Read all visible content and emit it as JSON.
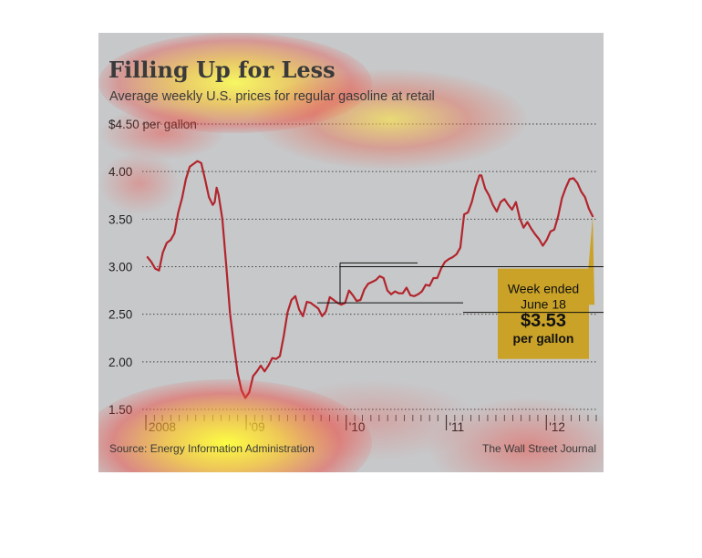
{
  "chart_data": {
    "type": "line",
    "title": "Filling Up for Less",
    "subtitle": "Average weekly U.S. prices for regular gasoline at retail",
    "y_top_label": "$4.50 per gallon",
    "yticks": [
      {
        "value": 4.5,
        "label": ""
      },
      {
        "value": 4.0,
        "label": "4.00"
      },
      {
        "value": 3.5,
        "label": "3.50"
      },
      {
        "value": 3.0,
        "label": "3.00"
      },
      {
        "value": 2.5,
        "label": "2.50"
      },
      {
        "value": 2.0,
        "label": "2.00"
      },
      {
        "value": 1.5,
        "label": "1.50"
      }
    ],
    "ylim": [
      1.5,
      4.5
    ],
    "xlim": [
      "2008-01-01",
      "2012-07-01"
    ],
    "year_labels": [
      {
        "date": "2008-01-01",
        "label": "2008"
      },
      {
        "date": "2009-01-01",
        "label": "'09"
      },
      {
        "date": "2010-01-01",
        "label": "'10"
      },
      {
        "date": "2011-01-01",
        "label": "'11"
      },
      {
        "date": "2012-01-01",
        "label": "'12"
      }
    ],
    "series": [
      {
        "color": "#b2252c",
        "points": [
          [
            "2008-01-07",
            3.1
          ],
          [
            "2008-01-21",
            3.05
          ],
          [
            "2008-02-04",
            2.98
          ],
          [
            "2008-02-18",
            2.96
          ],
          [
            "2008-03-03",
            3.15
          ],
          [
            "2008-03-17",
            3.25
          ],
          [
            "2008-03-31",
            3.28
          ],
          [
            "2008-04-14",
            3.35
          ],
          [
            "2008-04-28",
            3.57
          ],
          [
            "2008-05-12",
            3.72
          ],
          [
            "2008-05-26",
            3.92
          ],
          [
            "2008-06-09",
            4.05
          ],
          [
            "2008-06-23",
            4.08
          ],
          [
            "2008-07-07",
            4.11
          ],
          [
            "2008-07-21",
            4.09
          ],
          [
            "2008-08-04",
            3.92
          ],
          [
            "2008-08-18",
            3.73
          ],
          [
            "2008-09-01",
            3.65
          ],
          [
            "2008-09-08",
            3.68
          ],
          [
            "2008-09-15",
            3.83
          ],
          [
            "2008-09-22",
            3.76
          ],
          [
            "2008-10-06",
            3.5
          ],
          [
            "2008-10-20",
            3.02
          ],
          [
            "2008-11-03",
            2.51
          ],
          [
            "2008-11-17",
            2.18
          ],
          [
            "2008-12-01",
            1.88
          ],
          [
            "2008-12-15",
            1.7
          ],
          [
            "2008-12-29",
            1.62
          ],
          [
            "2009-01-12",
            1.68
          ],
          [
            "2009-01-26",
            1.85
          ],
          [
            "2009-02-09",
            1.9
          ],
          [
            "2009-02-23",
            1.96
          ],
          [
            "2009-03-09",
            1.9
          ],
          [
            "2009-03-23",
            1.96
          ],
          [
            "2009-04-06",
            2.04
          ],
          [
            "2009-04-20",
            2.03
          ],
          [
            "2009-05-04",
            2.06
          ],
          [
            "2009-05-18",
            2.27
          ],
          [
            "2009-06-01",
            2.52
          ],
          [
            "2009-06-15",
            2.65
          ],
          [
            "2009-06-29",
            2.69
          ],
          [
            "2009-07-13",
            2.55
          ],
          [
            "2009-07-27",
            2.48
          ],
          [
            "2009-08-10",
            2.63
          ],
          [
            "2009-08-24",
            2.62
          ],
          [
            "2009-09-07",
            2.59
          ],
          [
            "2009-09-21",
            2.56
          ],
          [
            "2009-10-05",
            2.48
          ],
          [
            "2009-10-19",
            2.53
          ],
          [
            "2009-11-02",
            2.68
          ],
          [
            "2009-11-16",
            2.65
          ],
          [
            "2009-11-30",
            2.62
          ],
          [
            "2009-12-14",
            2.6
          ],
          [
            "2009-12-28",
            2.62
          ],
          [
            "2010-01-11",
            2.75
          ],
          [
            "2010-01-25",
            2.7
          ],
          [
            "2010-02-08",
            2.64
          ],
          [
            "2010-02-22",
            2.65
          ],
          [
            "2010-03-08",
            2.76
          ],
          [
            "2010-03-22",
            2.82
          ],
          [
            "2010-04-05",
            2.84
          ],
          [
            "2010-04-19",
            2.86
          ],
          [
            "2010-05-03",
            2.9
          ],
          [
            "2010-05-17",
            2.88
          ],
          [
            "2010-05-31",
            2.75
          ],
          [
            "2010-06-14",
            2.71
          ],
          [
            "2010-06-28",
            2.74
          ],
          [
            "2010-07-12",
            2.72
          ],
          [
            "2010-07-26",
            2.72
          ],
          [
            "2010-08-09",
            2.78
          ],
          [
            "2010-08-23",
            2.7
          ],
          [
            "2010-09-06",
            2.69
          ],
          [
            "2010-09-20",
            2.71
          ],
          [
            "2010-10-04",
            2.74
          ],
          [
            "2010-10-18",
            2.81
          ],
          [
            "2010-11-01",
            2.8
          ],
          [
            "2010-11-15",
            2.88
          ],
          [
            "2010-11-29",
            2.88
          ],
          [
            "2010-12-13",
            2.98
          ],
          [
            "2010-12-27",
            3.05
          ],
          [
            "2011-01-10",
            3.08
          ],
          [
            "2011-01-24",
            3.1
          ],
          [
            "2011-02-07",
            3.13
          ],
          [
            "2011-02-21",
            3.2
          ],
          [
            "2011-03-07",
            3.55
          ],
          [
            "2011-03-21",
            3.57
          ],
          [
            "2011-04-04",
            3.68
          ],
          [
            "2011-04-18",
            3.84
          ],
          [
            "2011-05-02",
            3.96
          ],
          [
            "2011-05-09",
            3.96
          ],
          [
            "2011-05-23",
            3.82
          ],
          [
            "2011-06-06",
            3.75
          ],
          [
            "2011-06-20",
            3.65
          ],
          [
            "2011-07-04",
            3.58
          ],
          [
            "2011-07-18",
            3.68
          ],
          [
            "2011-08-01",
            3.71
          ],
          [
            "2011-08-15",
            3.65
          ],
          [
            "2011-08-29",
            3.6
          ],
          [
            "2011-09-12",
            3.68
          ],
          [
            "2011-09-26",
            3.51
          ],
          [
            "2011-10-10",
            3.41
          ],
          [
            "2011-10-24",
            3.47
          ],
          [
            "2011-11-07",
            3.4
          ],
          [
            "2011-11-21",
            3.34
          ],
          [
            "2011-12-05",
            3.29
          ],
          [
            "2011-12-19",
            3.22
          ],
          [
            "2012-01-02",
            3.28
          ],
          [
            "2012-01-16",
            3.37
          ],
          [
            "2012-01-30",
            3.39
          ],
          [
            "2012-02-13",
            3.53
          ],
          [
            "2012-02-27",
            3.72
          ],
          [
            "2012-03-12",
            3.83
          ],
          [
            "2012-03-26",
            3.92
          ],
          [
            "2012-04-09",
            3.93
          ],
          [
            "2012-04-23",
            3.88
          ],
          [
            "2012-05-07",
            3.79
          ],
          [
            "2012-05-21",
            3.73
          ],
          [
            "2012-06-04",
            3.61
          ],
          [
            "2012-06-18",
            3.53
          ]
        ]
      }
    ],
    "annotation": {
      "line1": "Week ended",
      "line2": "June 18",
      "value": "$3.53",
      "unit": "per gallon",
      "box_color": "#c9a227"
    },
    "grid": "dotted-horizontal",
    "line_color": "#b2252c"
  },
  "source": "Source: Energy Information Administration",
  "credit": "The Wall Street Journal",
  "heatmap_overlay": true
}
